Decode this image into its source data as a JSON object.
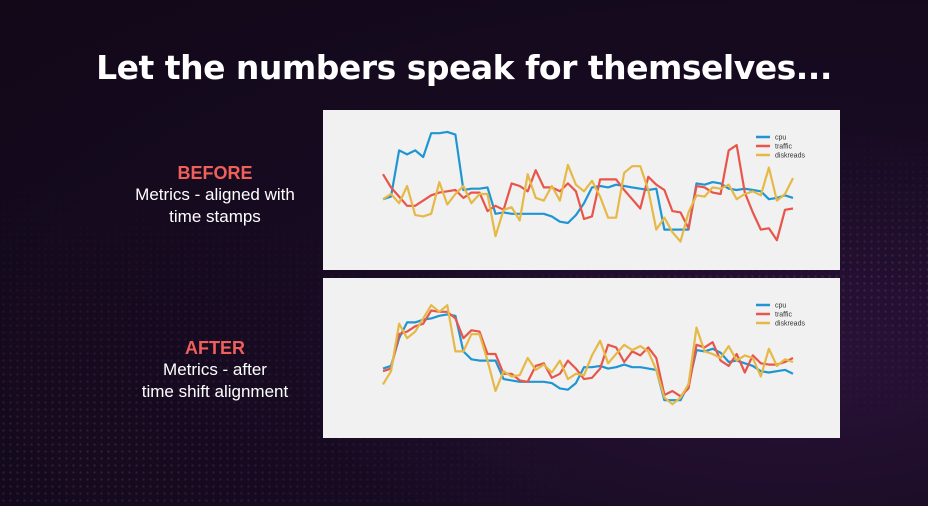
{
  "slide": {
    "title": "Let the numbers speak for themselves..."
  },
  "before": {
    "heading": "BEFORE",
    "desc_line1": "Metrics - aligned with",
    "desc_line2": "time stamps"
  },
  "after": {
    "heading": "AFTER",
    "desc_line1": "Metrics - after",
    "desc_line2": "time shift alignment"
  },
  "colors": {
    "cpu": "#1f96d3",
    "traffic": "#e8554a",
    "diskreads": "#e6b946"
  },
  "chart_data": [
    {
      "type": "line",
      "title": "",
      "legend": "top-right",
      "grid": false,
      "ylim": [
        0,
        100
      ],
      "series": [
        {
          "name": "cpu",
          "values": [
            43,
            45,
            80,
            77,
            80,
            75,
            93,
            93,
            94,
            92,
            50,
            51,
            51,
            52,
            32,
            33,
            32,
            32,
            32,
            32,
            32,
            30,
            26,
            25,
            31,
            40,
            52,
            53,
            52,
            54,
            53,
            52,
            51,
            50,
            51,
            20,
            20,
            20,
            20,
            55,
            54,
            56,
            55,
            51,
            50,
            51,
            50,
            49,
            43,
            44,
            46,
            44
          ]
        },
        {
          "name": "traffic",
          "values": [
            62,
            52,
            45,
            38,
            38,
            42,
            46,
            48,
            49,
            50,
            44,
            48,
            48,
            34,
            38,
            35,
            55,
            53,
            49,
            65,
            52,
            52,
            49,
            55,
            49,
            28,
            30,
            58,
            58,
            58,
            50,
            43,
            36,
            60,
            54,
            50,
            34,
            33,
            21,
            53,
            52,
            48,
            47,
            80,
            84,
            48,
            33,
            20,
            21,
            12,
            35,
            36
          ]
        },
        {
          "name": "diskreads",
          "values": [
            43,
            47,
            40,
            53,
            31,
            30,
            32,
            56,
            39,
            47,
            53,
            40,
            47,
            47,
            15,
            35,
            37,
            27,
            62,
            44,
            42,
            53,
            42,
            69,
            54,
            49,
            57,
            45,
            29,
            29,
            63,
            68,
            68,
            50,
            20,
            29,
            18,
            11,
            33,
            46,
            45,
            52,
            51,
            54,
            43,
            47,
            49,
            46,
            67,
            42,
            47,
            59
          ]
        }
      ]
    },
    {
      "type": "line",
      "title": "",
      "legend": "top-right",
      "grid": false,
      "ylim": [
        0,
        100
      ],
      "series": [
        {
          "name": "cpu",
          "values": [
            42,
            44,
            65,
            77,
            77,
            79,
            80,
            82,
            83,
            82,
            55,
            49,
            48,
            48,
            48,
            34,
            33,
            32,
            32,
            32,
            32,
            31,
            27,
            26,
            31,
            43,
            43,
            44,
            42,
            43,
            45,
            43,
            43,
            42,
            41,
            18,
            18,
            18,
            30,
            56,
            55,
            57,
            54,
            47,
            48,
            46,
            44,
            40,
            39,
            40,
            41,
            38
          ]
        },
        {
          "name": "traffic",
          "values": [
            40,
            42,
            68,
            70,
            74,
            76,
            86,
            85,
            85,
            80,
            65,
            71,
            70,
            53,
            53,
            38,
            38,
            33,
            32,
            44,
            46,
            35,
            38,
            48,
            42,
            34,
            35,
            42,
            60,
            58,
            47,
            55,
            52,
            58,
            50,
            22,
            25,
            21,
            27,
            60,
            58,
            62,
            48,
            44,
            53,
            39,
            52,
            46,
            45,
            45,
            47,
            50
          ]
        },
        {
          "name": "diskreads",
          "values": [
            30,
            40,
            76,
            65,
            70,
            80,
            90,
            85,
            90,
            55,
            55,
            68,
            68,
            48,
            25,
            40,
            36,
            37,
            50,
            41,
            45,
            39,
            48,
            34,
            38,
            37,
            52,
            63,
            46,
            53,
            60,
            56,
            59,
            55,
            41,
            20,
            15,
            20,
            30,
            73,
            55,
            53,
            50,
            59,
            48,
            52,
            50,
            36,
            57,
            44,
            49,
            47
          ]
        }
      ]
    }
  ]
}
